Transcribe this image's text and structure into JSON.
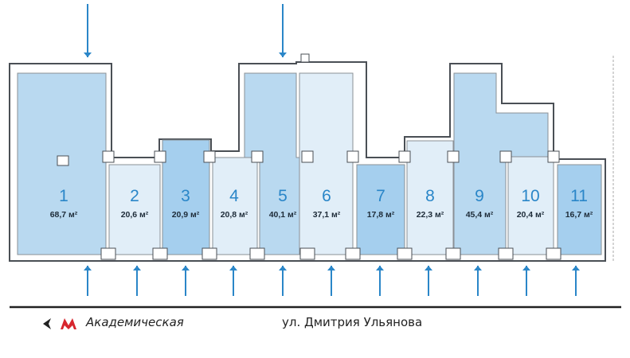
{
  "colors": {
    "light": "#e1eef8",
    "medium": "#b9d9f0",
    "dark": "#a5cfee",
    "wall": "#ffffff",
    "wall_stroke": "#4a4f55",
    "arrow": "#2a86c8",
    "metro": "#d7262e"
  },
  "units": [
    {
      "number": "1",
      "area": "68,7 м²",
      "shade": "medium"
    },
    {
      "number": "2",
      "area": "20,6 м²",
      "shade": "light"
    },
    {
      "number": "3",
      "area": "20,9 м²",
      "shade": "dark"
    },
    {
      "number": "4",
      "area": "20,8 м²",
      "shade": "light"
    },
    {
      "number": "5",
      "area": "40,1 м²",
      "shade": "medium"
    },
    {
      "number": "6",
      "area": "37,1 м²",
      "shade": "light"
    },
    {
      "number": "7",
      "area": "17,8 м²",
      "shade": "dark"
    },
    {
      "number": "8",
      "area": "22,3 м²",
      "shade": "light"
    },
    {
      "number": "9",
      "area": "45,4 м²",
      "shade": "medium"
    },
    {
      "number": "10",
      "area": "20,4 м²",
      "shade": "light"
    },
    {
      "number": "11",
      "area": "16,7 м²",
      "shade": "dark"
    }
  ],
  "legend": {
    "metro_icon": "metro-m-icon",
    "direction_icon": "arrow-left-icon",
    "metro_station": "Академическая",
    "street": "ул. Дмитрия Ульянова"
  }
}
